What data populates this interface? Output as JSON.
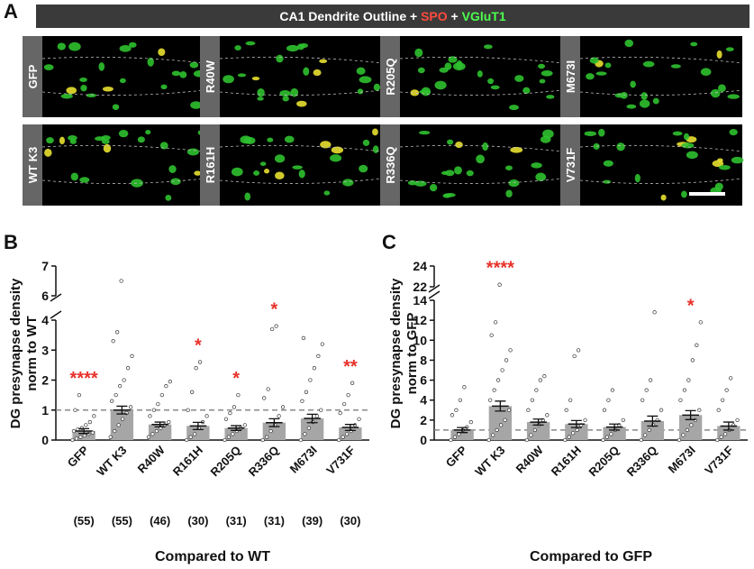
{
  "panel_a": {
    "label": "A",
    "title_parts": [
      "CA1 Dendrite Outline + ",
      "SPO",
      " + ",
      "VGluT1"
    ],
    "images": [
      "GFP",
      "R40W",
      "R205Q",
      "M673I",
      "WT K3",
      "R161H",
      "R336Q",
      "V731F"
    ]
  },
  "chart_data": [
    {
      "type": "bar",
      "panel": "B",
      "ylabel": [
        "DG presynapse density",
        "norm to WT"
      ],
      "xlabel": "Compared to WT",
      "categories": [
        "GFP",
        "WT K3",
        "R40W",
        "R161H",
        "R205Q",
        "R336Q",
        "M673I",
        "V731F"
      ],
      "n_labels": [
        "(55)",
        "(55)",
        "(46)",
        "(30)",
        "(31)",
        "(31)",
        "(39)",
        "(30)"
      ],
      "values": [
        0.3,
        1.0,
        0.52,
        0.47,
        0.4,
        0.58,
        0.72,
        0.42
      ],
      "errors": [
        0.08,
        0.13,
        0.08,
        0.12,
        0.08,
        0.13,
        0.14,
        0.1
      ],
      "points": [
        [
          0,
          0.05,
          0.1,
          0.15,
          0.2,
          0.25,
          0.3,
          0.35,
          0.4,
          0.5,
          0.6,
          0.8,
          1.0,
          1.5
        ],
        [
          0.1,
          0.3,
          0.5,
          0.7,
          0.9,
          1.1,
          1.3,
          1.5,
          1.8,
          2.0,
          2.4,
          2.8,
          3.3,
          3.6,
          6.5
        ],
        [
          0.1,
          0.2,
          0.3,
          0.4,
          0.5,
          0.6,
          0.8,
          1.0,
          1.2,
          1.5,
          1.8,
          1.95
        ],
        [
          0,
          0.1,
          0.2,
          0.4,
          0.6,
          0.8,
          1.0,
          1.6,
          2.4,
          2.6
        ],
        [
          0,
          0.1,
          0.2,
          0.3,
          0.4,
          0.5,
          0.7,
          0.9,
          1.1,
          1.5
        ],
        [
          0,
          0.1,
          0.3,
          0.5,
          0.8,
          1.1,
          1.4,
          1.7,
          3.7,
          3.8
        ],
        [
          0,
          0.2,
          0.4,
          0.6,
          0.8,
          1.0,
          1.3,
          1.6,
          2.0,
          2.4,
          2.8,
          3.2,
          3.4
        ],
        [
          0,
          0.1,
          0.2,
          0.3,
          0.5,
          0.7,
          0.9,
          1.2,
          1.5,
          1.9
        ]
      ],
      "significance": [
        "****",
        null,
        null,
        "*",
        "*",
        "*",
        null,
        "**"
      ],
      "reference_line": 1,
      "color": "#a6a6a6",
      "significance_color": "#e8312a",
      "segments": [
        {
          "ylim": [
            0,
            4
          ],
          "yticks": [
            0,
            1,
            2,
            3,
            4
          ]
        },
        {
          "ylim": [
            6,
            7
          ],
          "yticks": [
            6,
            7
          ]
        }
      ]
    },
    {
      "type": "bar",
      "panel": "C",
      "ylabel": [
        "DG presynapse density",
        "norm to GFP"
      ],
      "xlabel": "Compared to GFP",
      "categories": [
        "GFP",
        "WT K3",
        "R40W",
        "R161H",
        "R205Q",
        "R336Q",
        "M673I",
        "V731F"
      ],
      "values": [
        1.0,
        3.4,
        1.8,
        1.6,
        1.3,
        1.9,
        2.5,
        1.4
      ],
      "errors": [
        0.25,
        0.5,
        0.3,
        0.35,
        0.3,
        0.5,
        0.45,
        0.4
      ],
      "points": [
        [
          0,
          0.3,
          0.6,
          1,
          1.3,
          1.8,
          2.5,
          3,
          4,
          5.3
        ],
        [
          0,
          0.5,
          1,
          1.5,
          2,
          3,
          4,
          5,
          6,
          7,
          8,
          9,
          10.5,
          11.8,
          22.2
        ],
        [
          0,
          0.5,
          1,
          1.5,
          2,
          2.5,
          3,
          4,
          5,
          6,
          6.4
        ],
        [
          0,
          0.3,
          0.7,
          1,
          1.5,
          2,
          3,
          4,
          8.4,
          9
        ],
        [
          0,
          0.3,
          0.6,
          1,
          1.5,
          2,
          3,
          4,
          5
        ],
        [
          0,
          0.5,
          1,
          1.5,
          2,
          3,
          4,
          5,
          6,
          12.8
        ],
        [
          0,
          0.5,
          1,
          1.5,
          2,
          3,
          4,
          5,
          6,
          8,
          9.5,
          11.8
        ],
        [
          0,
          0.3,
          0.6,
          1,
          1.5,
          2,
          3,
          4,
          5,
          6.2
        ]
      ],
      "significance": [
        null,
        "****",
        null,
        null,
        null,
        null,
        "*",
        null
      ],
      "reference_line": 1,
      "color": "#a6a6a6",
      "significance_color": "#e8312a",
      "segments": [
        {
          "ylim": [
            0,
            14
          ],
          "yticks": [
            0,
            2,
            4,
            6,
            8,
            10,
            12,
            14
          ]
        },
        {
          "ylim": [
            22,
            24
          ],
          "yticks": [
            22,
            24
          ]
        }
      ]
    }
  ]
}
